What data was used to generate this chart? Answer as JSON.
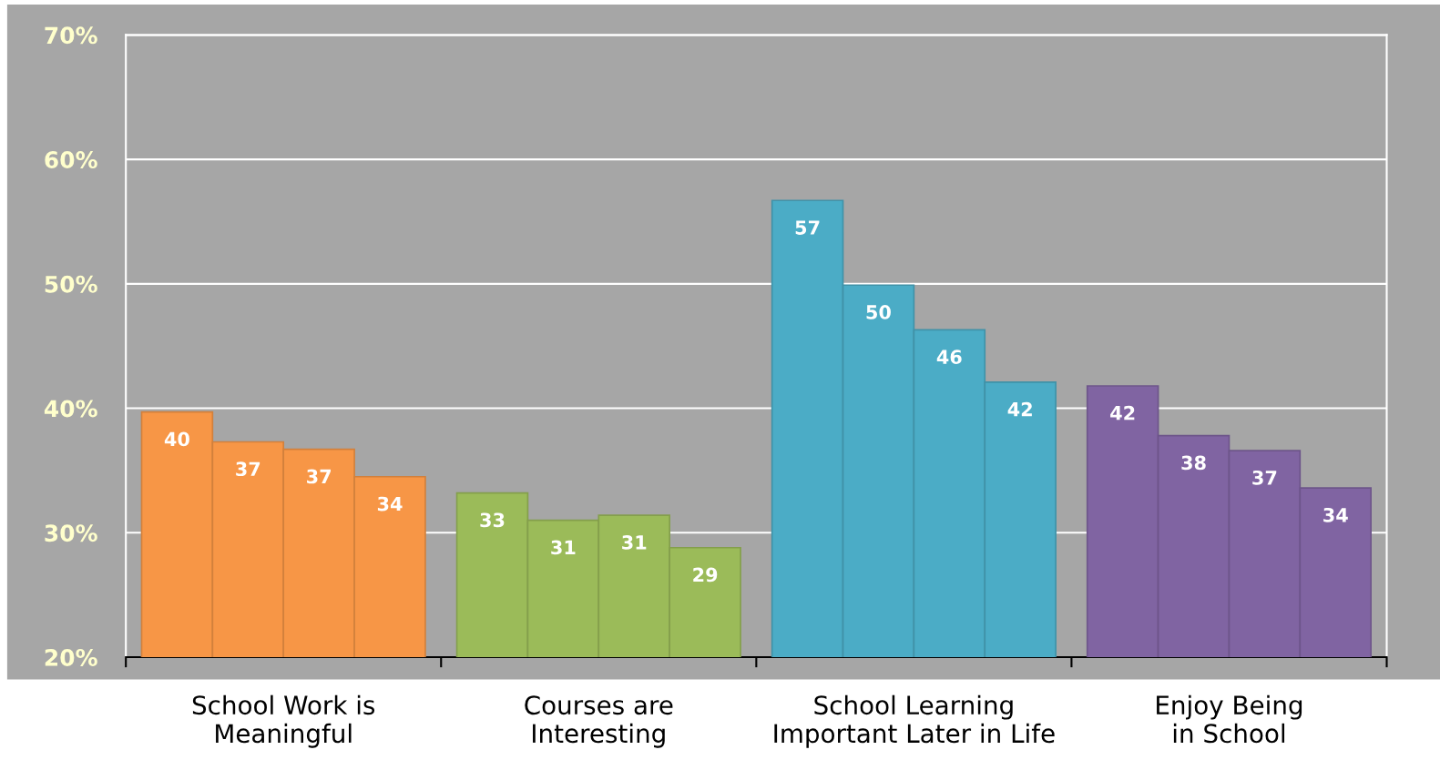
{
  "chart_data": {
    "type": "bar",
    "categories": [
      "School Work is\nMeaningful",
      "Courses are\nInteresting",
      "School Learning\nImportant Later in Life",
      "Enjoy Being\nin School"
    ],
    "series": [
      {
        "colors": [
          "#f79646",
          "#9bbb59",
          "#4bacc6",
          "#8064a2"
        ],
        "values": [
          39.7,
          33.2,
          56.7,
          41.8
        ],
        "value_labels": [
          "40",
          "33",
          "57",
          "42"
        ]
      },
      {
        "colors": [
          "#f79646",
          "#9bbb59",
          "#4bacc6",
          "#8064a2"
        ],
        "values": [
          37.3,
          31.0,
          49.9,
          37.8
        ],
        "value_labels": [
          "37",
          "31",
          "50",
          "38"
        ]
      },
      {
        "colors": [
          "#f79646",
          "#9bbb59",
          "#4bacc6",
          "#8064a2"
        ],
        "values": [
          36.7,
          31.4,
          46.3,
          36.6
        ],
        "value_labels": [
          "37",
          "31",
          "46",
          "37"
        ]
      },
      {
        "colors": [
          "#f79646",
          "#9bbb59",
          "#4bacc6",
          "#8064a2"
        ],
        "values": [
          34.5,
          28.8,
          42.1,
          33.6
        ],
        "value_labels": [
          "34",
          "29",
          "42",
          "34"
        ]
      }
    ],
    "ylim": [
      20,
      70
    ],
    "yticks": [
      {
        "value": 20,
        "label": "20%"
      },
      {
        "value": 30,
        "label": "30%"
      },
      {
        "value": 40,
        "label": "40%"
      },
      {
        "value": 50,
        "label": "50%"
      },
      {
        "value": 60,
        "label": "60%"
      },
      {
        "value": 70,
        "label": "70%"
      }
    ],
    "grid": "y"
  }
}
